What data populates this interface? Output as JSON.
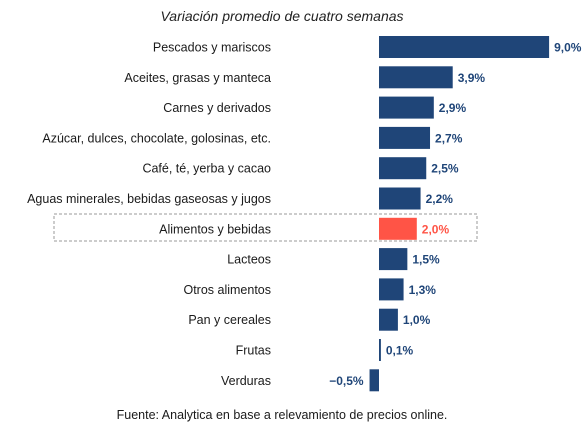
{
  "chart_data": {
    "type": "bar",
    "orientation": "horizontal",
    "title": "Variación promedio de cuatro semanas",
    "categories": [
      "Pescados y mariscos",
      "Aceites, grasas y manteca",
      "Carnes y derivados",
      "Azúcar, dulces, chocolate, golosinas, etc.",
      "Café, té, yerba y cacao",
      "Aguas minerales, bebidas gaseosas y jugos",
      "Alimentos y bebidas",
      "Lacteos",
      "Otros alimentos",
      "Pan y cereales",
      "Frutas",
      "Verduras"
    ],
    "values": [
      9.0,
      3.9,
      2.9,
      2.7,
      2.5,
      2.2,
      2.0,
      1.5,
      1.3,
      1.0,
      0.1,
      -0.5
    ],
    "value_labels": [
      "9,0%",
      "3,9%",
      "2,9%",
      "2,7%",
      "2,5%",
      "2,2%",
      "2,0%",
      "1,5%",
      "1,3%",
      "1,0%",
      "0,1%",
      "−0,5%"
    ],
    "highlight_category": "Alimentos y bebidas",
    "colors": {
      "bar": "#1f4578",
      "highlight": "#ff5446",
      "highlight_box": "#9a9a9a"
    },
    "xlim": [
      -0.5,
      9.0
    ],
    "grid": false,
    "source": "Fuente: Analytica en base a relevamiento de precios online."
  }
}
